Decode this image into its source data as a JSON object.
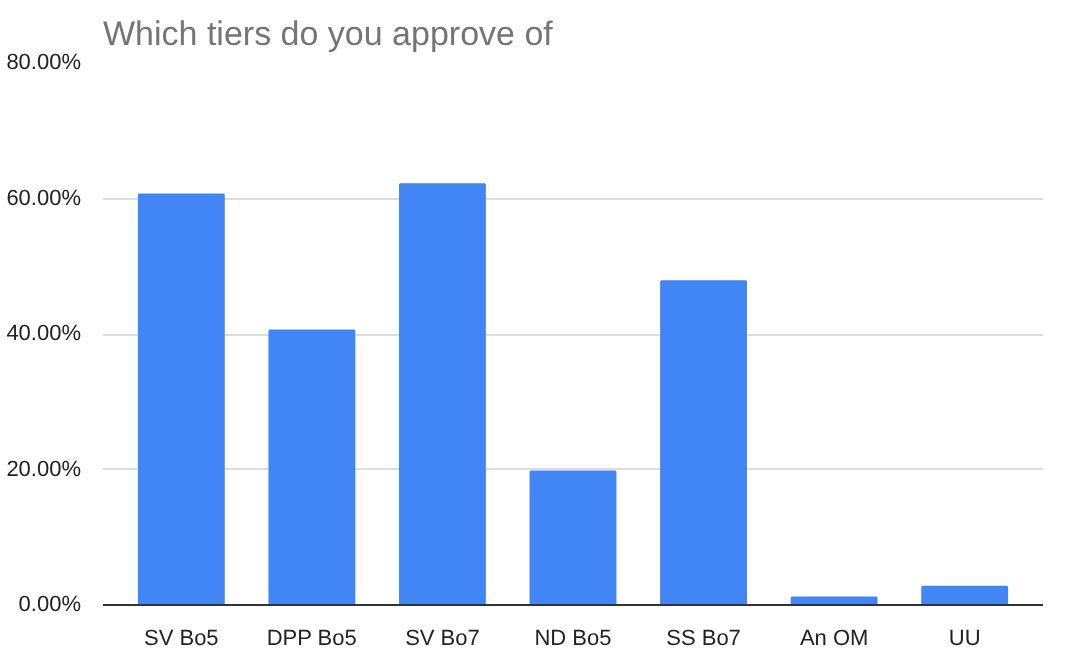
{
  "chart_data": {
    "type": "bar",
    "title": "Which tiers do you approve of",
    "categories": [
      "SV Bo5",
      "DPP Bo5",
      "SV Bo7",
      "ND Bo5",
      "SS Bo7",
      "An OM",
      "UU"
    ],
    "values": [
      60.6,
      40.5,
      62.1,
      19.7,
      47.8,
      1.1,
      2.7
    ],
    "color": "#4285f4",
    "ylim": [
      0,
      80
    ],
    "yticks": [
      {
        "value": 0,
        "label": "0.00%"
      },
      {
        "value": 20,
        "label": "20.00%"
      },
      {
        "value": 40,
        "label": "40.00%"
      },
      {
        "value": 60,
        "label": "60.00%"
      },
      {
        "value": 80,
        "label": "80.00%"
      }
    ],
    "grid": "y"
  }
}
